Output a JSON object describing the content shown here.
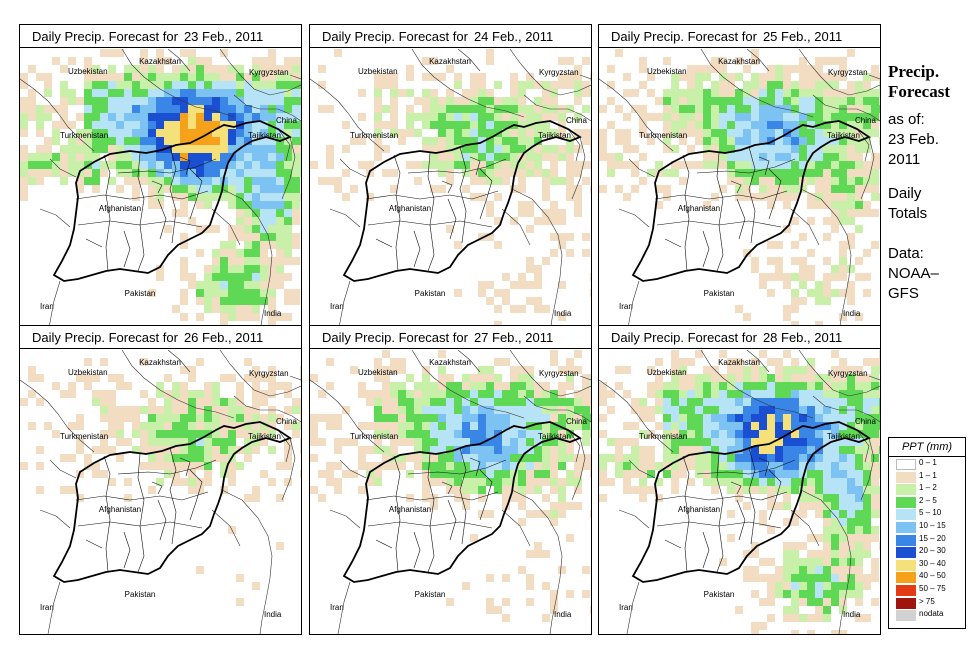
{
  "panels": [
    {
      "title_prefix": "Daily Precip. Forecast for",
      "date": "23 Feb., 2011",
      "intensity": 1.0,
      "south": 0.8
    },
    {
      "title_prefix": "Daily Precip. Forecast for",
      "date": "24 Feb., 2011",
      "intensity": 0.35,
      "south": 0.6
    },
    {
      "title_prefix": "Daily Precip. Forecast for",
      "date": "25 Feb., 2011",
      "intensity": 0.55,
      "south": 0.7
    },
    {
      "title_prefix": "Daily Precip. Forecast for",
      "date": "26 Feb., 2011",
      "intensity": 0.3,
      "south": 0.2
    },
    {
      "title_prefix": "Daily Precip. Forecast for",
      "date": "27 Feb., 2011",
      "intensity": 0.6,
      "south": 0.3
    },
    {
      "title_prefix": "Daily Precip. Forecast for",
      "date": "28 Feb., 2011",
      "intensity": 0.85,
      "south": 0.9
    }
  ],
  "map_labels": [
    "Kazakhstan",
    "Uzbekistan",
    "Kyrgyzstan",
    "China",
    "Turkmenistan",
    "Tajikistan",
    "Afghanistan",
    "Pakistan",
    "Iran",
    "India"
  ],
  "sidebar": {
    "title_line1": "Precip.",
    "title_line2": "Forecast",
    "asof_line1": "as of:",
    "asof_line2": "23 Feb.",
    "asof_line3": "2011",
    "totals_line1": "Daily",
    "totals_line2": "Totals",
    "data_line1": "Data:",
    "data_line2": "NOAA–",
    "data_line3": "GFS"
  },
  "legend": {
    "header": "PPT (mm)",
    "items": [
      {
        "label": "0 – 1",
        "color": "#ffffff"
      },
      {
        "label": "1 – 1",
        "color": "#f2dcc2"
      },
      {
        "label": "1 – 2",
        "color": "#c8f0a8"
      },
      {
        "label": "2 – 5",
        "color": "#5fd855"
      },
      {
        "label": "5 – 10",
        "color": "#b6e4f6"
      },
      {
        "label": "10 – 15",
        "color": "#7cc2f2"
      },
      {
        "label": "15 – 20",
        "color": "#3a86e6"
      },
      {
        "label": "20 – 30",
        "color": "#1a4fd2"
      },
      {
        "label": "30 – 40",
        "color": "#f6e07a"
      },
      {
        "label": "40 – 50",
        "color": "#f5a21a"
      },
      {
        "label": "50 – 75",
        "color": "#e43a16"
      },
      {
        "label": "> 75",
        "color": "#a0140e"
      },
      {
        "label": "nodata",
        "color": "#d2d2d2"
      }
    ]
  }
}
